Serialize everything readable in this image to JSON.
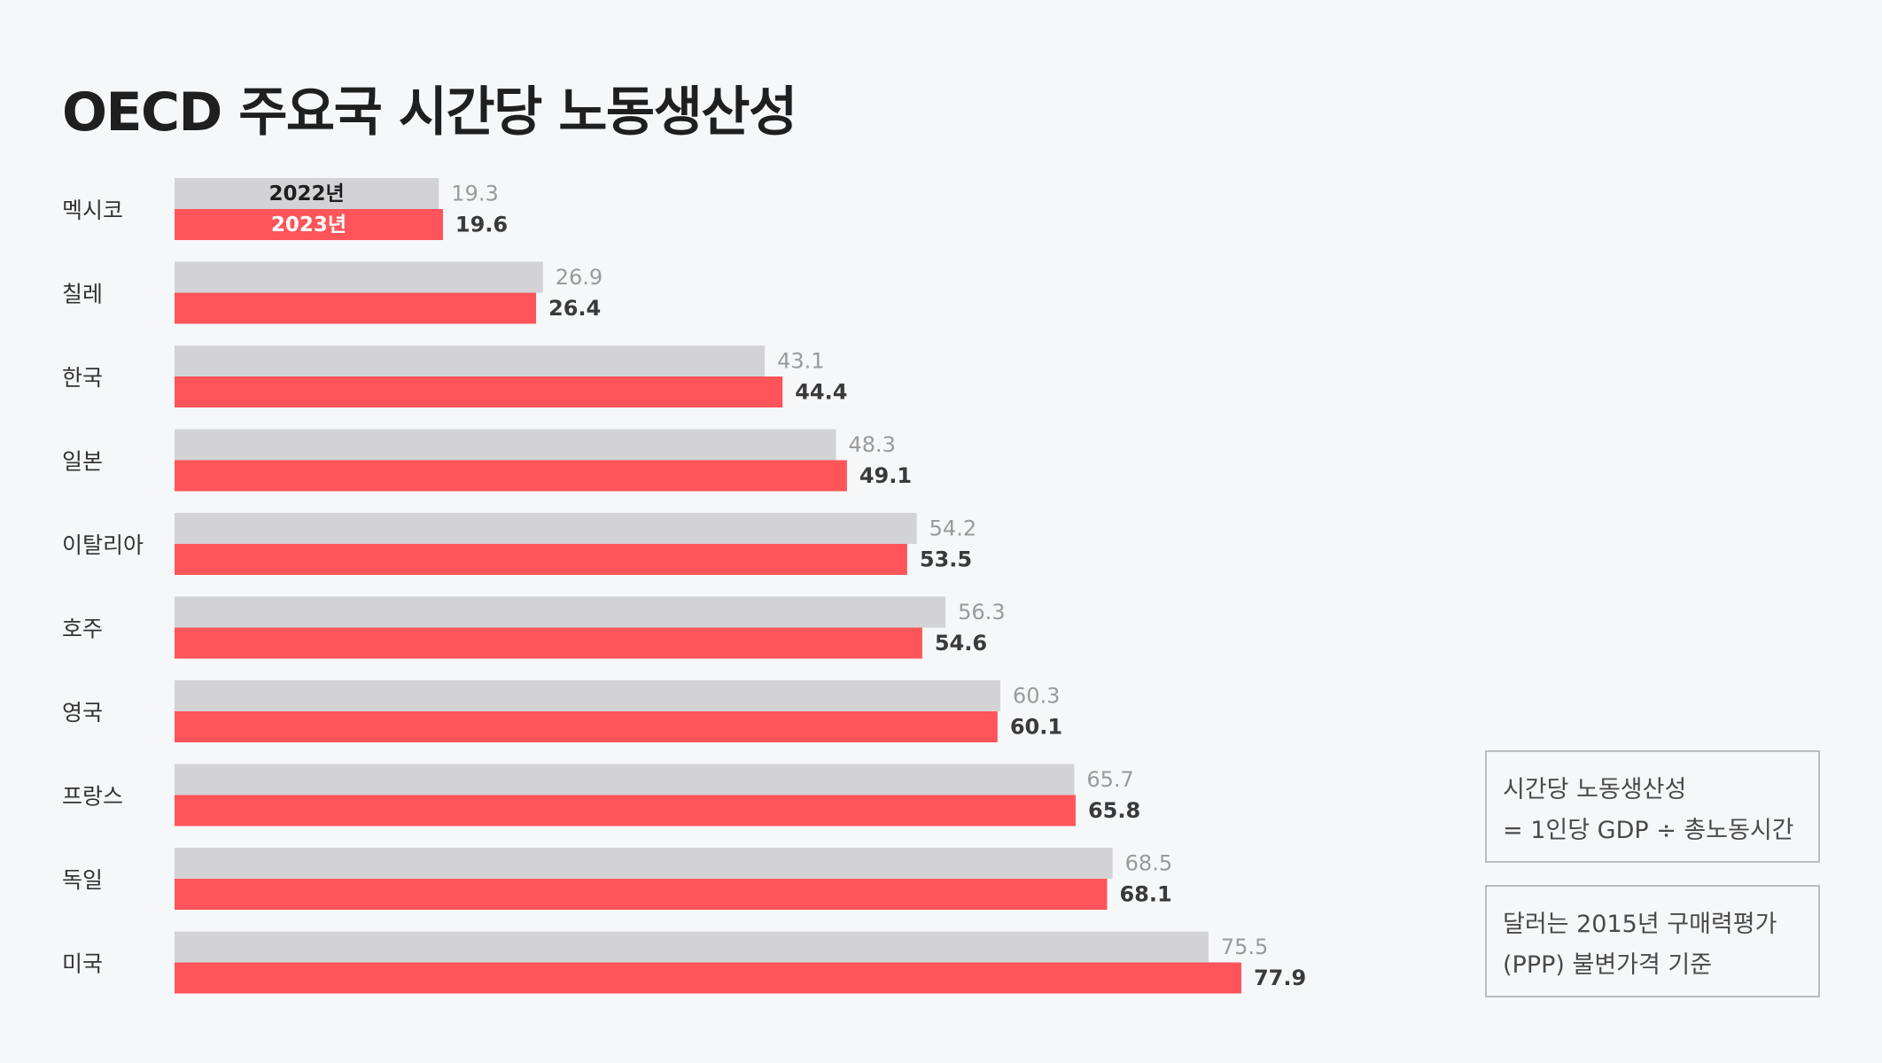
{
  "title": "OECD 주요국 시간당 노동생산성",
  "chart_data": {
    "type": "bar",
    "orientation": "horizontal",
    "categories": [
      "멕시코",
      "칠레",
      "한국",
      "일본",
      "이탈리아",
      "호주",
      "영국",
      "프랑스",
      "독일",
      "미국"
    ],
    "series": [
      {
        "name": "2022년",
        "color": "#d3d3d5",
        "label_color": "#9a9a9a",
        "values": [
          19.3,
          26.9,
          43.1,
          48.3,
          54.2,
          56.3,
          60.3,
          65.7,
          68.5,
          75.5
        ]
      },
      {
        "name": "2023년",
        "color": "#ff5459",
        "label_color": "#3a3a3a",
        "values": [
          19.6,
          26.4,
          44.4,
          49.1,
          53.5,
          54.6,
          60.1,
          65.8,
          68.1,
          77.9
        ]
      }
    ],
    "legend_placement": "inside first bars",
    "xlim": [
      0,
      77.9
    ],
    "grid": false
  },
  "notes": {
    "definition": [
      "시간당 노동생산성",
      "= 1인당 GDP ÷ 총노동시간"
    ],
    "currency": [
      "달러는 2015년 구매력평가",
      "(PPP) 불변가격 기준"
    ]
  }
}
